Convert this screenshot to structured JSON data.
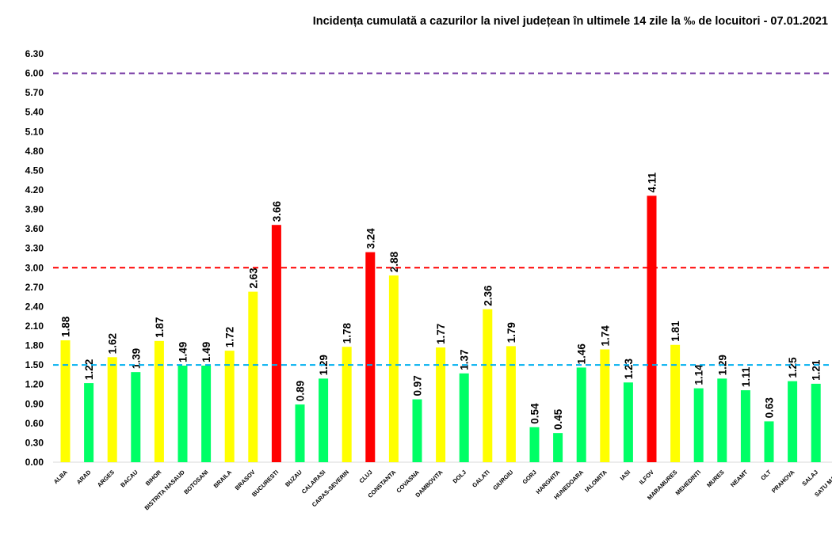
{
  "chart_data": {
    "type": "bar",
    "title": "Incidența cumulată a cazurilor la nivel județean în ultimele 14 zile la ‰ de locuitori - 07.01.2021",
    "xlabel": "",
    "ylabel": "",
    "ylim": [
      0,
      6.3
    ],
    "yticks": [
      "0.00",
      "0.30",
      "0.60",
      "0.90",
      "1.20",
      "1.50",
      "1.80",
      "2.10",
      "2.40",
      "2.70",
      "3.00",
      "3.30",
      "3.60",
      "3.90",
      "4.20",
      "4.50",
      "4.80",
      "5.10",
      "5.40",
      "5.70",
      "6.00",
      "6.30"
    ],
    "categories": [
      "ALBA",
      "ARAD",
      "ARGES",
      "BACAU",
      "BIHOR",
      "BISTRITA NASAUD",
      "BOTOSANI",
      "BRAILA",
      "BRASOV",
      "BUCURESTI",
      "BUZAU",
      "CALARASI",
      "CARAS-SEVERIN",
      "CLUJ",
      "CONSTANTA",
      "COVASNA",
      "DAMBOVITA",
      "DOLJ",
      "GALATI",
      "GIURGIU",
      "GORJ",
      "HARGHITA",
      "HUNEDOARA",
      "IALOMITA",
      "IASI",
      "ILFOV",
      "MARAMURES",
      "MEHEDINTI",
      "MURES",
      "NEAMT",
      "OLT",
      "PRAHOVA",
      "SALAJ",
      "SATU MARE"
    ],
    "values": [
      1.88,
      1.22,
      1.62,
      1.39,
      1.87,
      1.49,
      1.49,
      1.72,
      2.63,
      3.66,
      0.89,
      1.29,
      1.78,
      3.24,
      2.88,
      0.97,
      1.77,
      1.37,
      2.36,
      1.79,
      0.54,
      0.45,
      1.46,
      1.74,
      1.23,
      4.11,
      1.81,
      1.14,
      1.29,
      1.11,
      0.63,
      1.25,
      1.21,
      null
    ],
    "value_labels": [
      "1.88",
      "1.22",
      "1.62",
      "1.39",
      "1.87",
      "1.49",
      "1.49",
      "1.72",
      "2.63",
      "3.66",
      "0.89",
      "1.29",
      "1.78",
      "3.24",
      "2.88",
      "0.97",
      "1.77",
      "1.37",
      "2.36",
      "1.79",
      "0.54",
      "0.45",
      "1.46",
      "1.74",
      "1.23",
      "4.11",
      "1.81",
      "1.14",
      "1.29",
      "1.11",
      "0.63",
      "1.25",
      "1.21",
      ""
    ],
    "threshold_lines": [
      {
        "value": 6.0,
        "color": "#7030A0"
      },
      {
        "value": 3.0,
        "color": "#FF0000"
      },
      {
        "value": 1.5,
        "color": "#00B0F0"
      }
    ],
    "colors": {
      "green": "#00FF66",
      "yellow": "#FFFF00",
      "red": "#FF0000"
    },
    "color_rule": "green below 1.5, yellow 1.5 to 3.0, red above 3.0",
    "grid": false,
    "legend": "none"
  }
}
